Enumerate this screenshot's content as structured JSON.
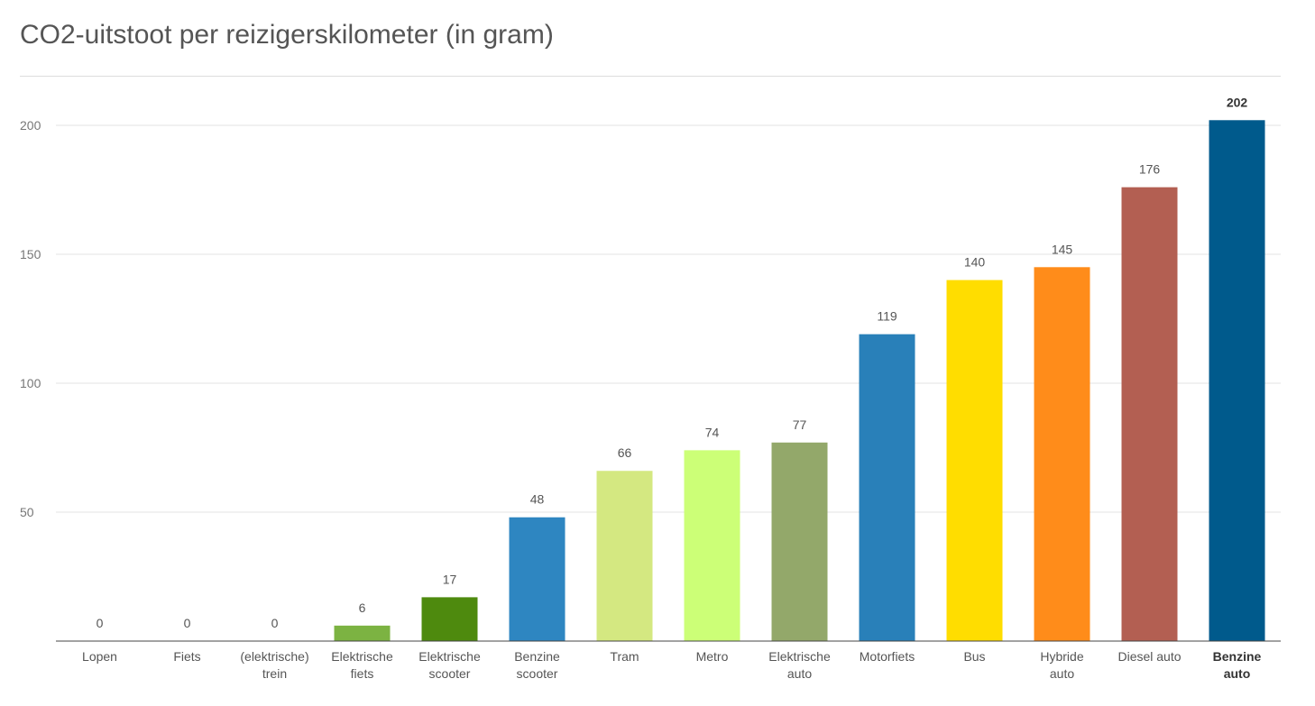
{
  "chart_data": {
    "type": "bar",
    "title": "CO2-uitstoot per reizigerskilometer (in gram)",
    "xlabel": "",
    "ylabel": "",
    "ylim": [
      0,
      210
    ],
    "yticks": [
      50,
      100,
      150,
      200
    ],
    "grid": true,
    "legend": "none",
    "categories": [
      [
        "Lopen"
      ],
      [
        "Fiets"
      ],
      [
        "(elektrische)",
        "trein"
      ],
      [
        "Elektrische",
        "fiets"
      ],
      [
        "Elektrische",
        "scooter"
      ],
      [
        "Benzine",
        "scooter"
      ],
      [
        "Tram"
      ],
      [
        "Metro"
      ],
      [
        "Elektrische",
        "auto"
      ],
      [
        "Motorfiets"
      ],
      [
        "Bus"
      ],
      [
        "Hybride",
        "auto"
      ],
      [
        "Diesel auto"
      ],
      [
        "Benzine",
        "auto"
      ]
    ],
    "values": [
      0,
      0,
      0,
      6,
      17,
      48,
      66,
      74,
      77,
      119,
      140,
      145,
      176,
      202
    ],
    "colors": [
      "#7cb342",
      "#7cb342",
      "#7cb342",
      "#7cb342",
      "#4e8a0e",
      "#2e86c1",
      "#d4e881",
      "#ccff77",
      "#93a86a",
      "#2980b9",
      "#ffdd00",
      "#ff8c1a",
      "#b35f52",
      "#005a8c"
    ],
    "highlighted": [
      13
    ]
  }
}
